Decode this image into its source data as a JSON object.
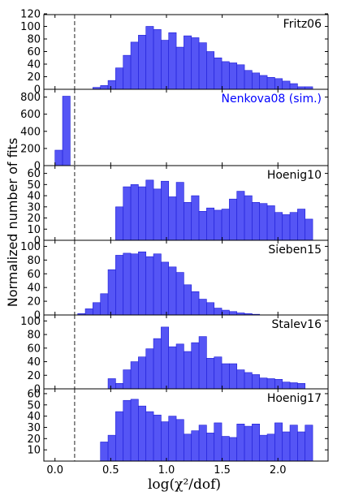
{
  "chart_data": {
    "type": "bar",
    "ylabel": "Normalized number of fits",
    "xlabel": "log(χ²/dof)",
    "xlim": [
      -0.1,
      2.45
    ],
    "xticks": [
      0.0,
      0.5,
      1.0,
      1.5,
      2.0
    ],
    "xtick_labels": [
      "0.0",
      "0.5",
      "1.0",
      "1.5",
      "2.0"
    ],
    "threshold_line": 0.176,
    "colors": {
      "bars": "#5555f5",
      "edges": "#1b1bd6",
      "line": "#555555",
      "blue_label": "#0000ff"
    },
    "bin_edges": [
      0.0,
      0.068,
      0.136,
      0.204,
      0.272,
      0.34,
      0.408,
      0.476,
      0.544,
      0.612,
      0.68,
      0.748,
      0.816,
      0.884,
      0.952,
      1.02,
      1.088,
      1.156,
      1.224,
      1.292,
      1.36,
      1.428,
      1.496,
      1.564,
      1.632,
      1.7,
      1.768,
      1.836,
      1.904,
      1.972,
      2.04,
      2.108,
      2.176,
      2.244,
      2.312
    ],
    "panels": [
      {
        "label": "Fritz06",
        "label_color": "#000000",
        "ylim": [
          0,
          120
        ],
        "yticks": [
          0,
          20,
          40,
          60,
          80,
          100,
          120
        ],
        "values": [
          0,
          0,
          0,
          0,
          0,
          3,
          6,
          14,
          34,
          54,
          75,
          86,
          100,
          95,
          78,
          90,
          67,
          85,
          82,
          74,
          60,
          50,
          44,
          42,
          39,
          30,
          26,
          22,
          19,
          17,
          13,
          9,
          4,
          4
        ]
      },
      {
        "label": "Nenkova08 (sim.)",
        "label_color": "#0000ff",
        "ylim": [
          0,
          900
        ],
        "yticks": [
          0,
          200,
          400,
          600,
          800
        ],
        "values": [
          180,
          810,
          0,
          0,
          0,
          0,
          0,
          0,
          0,
          0,
          0,
          0,
          0,
          0,
          0,
          0,
          0,
          0,
          0,
          0,
          0,
          0,
          0,
          0,
          0,
          0,
          0,
          0,
          0,
          0,
          0,
          0,
          0,
          0
        ]
      },
      {
        "label": "Hoenig10",
        "label_color": "#000000",
        "ylim": [
          0,
          67
        ],
        "yticks": [
          0,
          10,
          20,
          30,
          40,
          50,
          60
        ],
        "values": [
          0,
          0,
          0,
          0,
          0,
          0,
          0,
          0,
          30,
          48,
          50,
          48,
          54,
          46,
          53,
          39,
          52,
          34,
          40,
          26,
          29,
          27,
          28,
          37,
          44,
          40,
          34,
          33,
          31,
          25,
          23,
          25,
          28,
          19
        ]
      },
      {
        "label": "Sieben15",
        "label_color": "#000000",
        "ylim": [
          0,
          110
        ],
        "yticks": [
          0,
          20,
          40,
          60,
          80,
          100
        ],
        "values": [
          0,
          0,
          0,
          2,
          9,
          18,
          31,
          66,
          87,
          90,
          89,
          92,
          85,
          89,
          77,
          70,
          62,
          44,
          34,
          23,
          18,
          10,
          7,
          5,
          3,
          2,
          1,
          0,
          0,
          0,
          0,
          0,
          0,
          0
        ]
      },
      {
        "label": "Stalev16",
        "label_color": "#000000",
        "ylim": [
          0,
          110
        ],
        "yticks": [
          0,
          20,
          40,
          60,
          80,
          100
        ],
        "values": [
          0,
          0,
          0,
          0,
          0,
          0,
          0,
          15,
          8,
          28,
          40,
          47,
          59,
          74,
          91,
          62,
          66,
          55,
          68,
          77,
          45,
          47,
          37,
          37,
          28,
          24,
          21,
          16,
          15,
          14,
          10,
          9,
          8,
          0
        ]
      },
      {
        "label": "Hoenig17",
        "label_color": "#000000",
        "ylim": [
          0,
          65
        ],
        "yticks": [
          10,
          20,
          30,
          40,
          50,
          60
        ],
        "values": [
          0,
          0,
          0,
          0,
          0,
          0,
          17,
          23,
          44,
          54,
          55,
          49,
          44,
          41,
          35,
          40,
          37,
          24,
          27,
          32,
          25,
          34,
          22,
          21,
          33,
          31,
          33,
          23,
          24,
          34,
          26,
          32,
          26,
          32
        ]
      }
    ]
  }
}
